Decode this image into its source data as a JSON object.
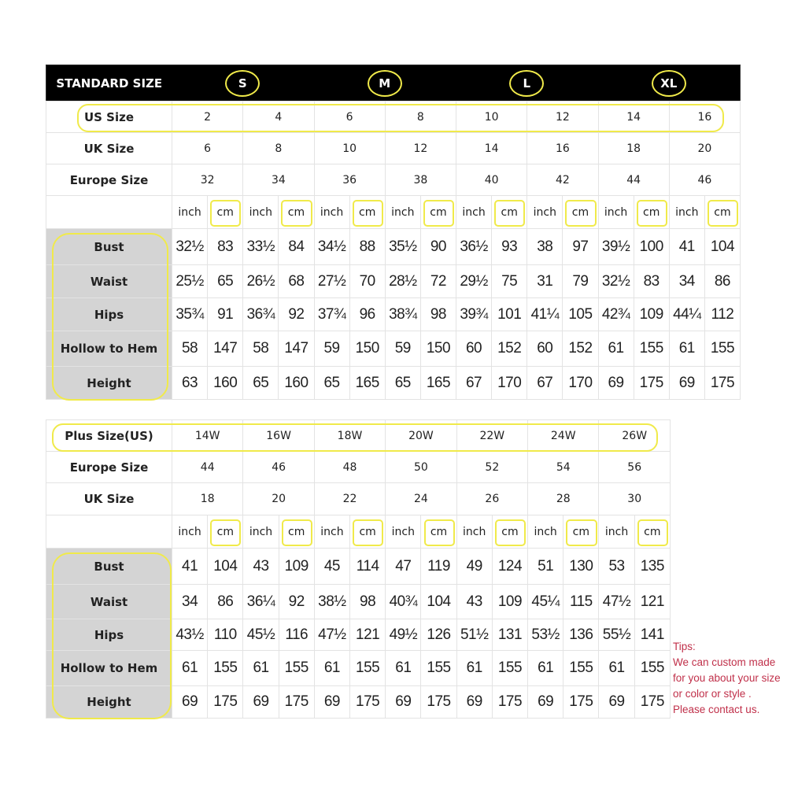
{
  "standard": {
    "title": "STANDARD SIZE",
    "groups": [
      "S",
      "M",
      "L",
      "XL"
    ],
    "size_rows": [
      {
        "label": "US Size",
        "values": [
          "2",
          "4",
          "6",
          "8",
          "10",
          "12",
          "14",
          "16"
        ]
      },
      {
        "label": "UK Size",
        "values": [
          "6",
          "8",
          "10",
          "12",
          "14",
          "16",
          "18",
          "20"
        ]
      },
      {
        "label": "Europe Size",
        "values": [
          "32",
          "34",
          "36",
          "38",
          "40",
          "42",
          "44",
          "46"
        ]
      }
    ],
    "units": [
      "inch",
      "cm"
    ],
    "measure_rows": [
      {
        "label": "Bust",
        "values": [
          "32½",
          "83",
          "33½",
          "84",
          "34½",
          "88",
          "35½",
          "90",
          "36½",
          "93",
          "38",
          "97",
          "39½",
          "100",
          "41",
          "104"
        ]
      },
      {
        "label": "Waist",
        "values": [
          "25½",
          "65",
          "26½",
          "68",
          "27½",
          "70",
          "28½",
          "72",
          "29½",
          "75",
          "31",
          "79",
          "32½",
          "83",
          "34",
          "86"
        ]
      },
      {
        "label": "Hips",
        "values": [
          "35¾",
          "91",
          "36¾",
          "92",
          "37¾",
          "96",
          "38¾",
          "98",
          "39¾",
          "101",
          "41¼",
          "105",
          "42¾",
          "109",
          "44¼",
          "112"
        ]
      },
      {
        "label": "Hollow to Hem",
        "values": [
          "58",
          "147",
          "58",
          "147",
          "59",
          "150",
          "59",
          "150",
          "60",
          "152",
          "60",
          "152",
          "61",
          "155",
          "61",
          "155"
        ]
      },
      {
        "label": "Height",
        "values": [
          "63",
          "160",
          "65",
          "160",
          "65",
          "165",
          "65",
          "165",
          "67",
          "170",
          "67",
          "170",
          "69",
          "175",
          "69",
          "175"
        ]
      }
    ]
  },
  "plus": {
    "size_rows": [
      {
        "label": "Plus Size(US)",
        "values": [
          "14W",
          "16W",
          "18W",
          "20W",
          "22W",
          "24W",
          "26W"
        ]
      },
      {
        "label": "Europe Size",
        "values": [
          "44",
          "46",
          "48",
          "50",
          "52",
          "54",
          "56"
        ]
      },
      {
        "label": "UK Size",
        "values": [
          "18",
          "20",
          "22",
          "24",
          "26",
          "28",
          "30"
        ]
      }
    ],
    "units": [
      "inch",
      "cm"
    ],
    "measure_rows": [
      {
        "label": "Bust",
        "values": [
          "41",
          "104",
          "43",
          "109",
          "45",
          "114",
          "47",
          "119",
          "49",
          "124",
          "51",
          "130",
          "53",
          "135"
        ]
      },
      {
        "label": "Waist",
        "values": [
          "34",
          "86",
          "36¼",
          "92",
          "38½",
          "98",
          "40¾",
          "104",
          "43",
          "109",
          "45¼",
          "115",
          "47½",
          "121"
        ]
      },
      {
        "label": "Hips",
        "values": [
          "43½",
          "110",
          "45½",
          "116",
          "47½",
          "121",
          "49½",
          "126",
          "51½",
          "131",
          "53½",
          "136",
          "55½",
          "141"
        ]
      },
      {
        "label": "Hollow to Hem",
        "values": [
          "61",
          "155",
          "61",
          "155",
          "61",
          "155",
          "61",
          "155",
          "61",
          "155",
          "61",
          "155",
          "61",
          "155"
        ]
      },
      {
        "label": "Height",
        "values": [
          "69",
          "175",
          "69",
          "175",
          "69",
          "175",
          "69",
          "175",
          "69",
          "175",
          "69",
          "175",
          "69",
          "175"
        ]
      }
    ]
  },
  "tips": {
    "title": "Tips:",
    "lines": [
      "We can custom made",
      "for you about your size",
      "or color or style .",
      "Please contact us."
    ]
  },
  "colors": {
    "highlight": "#f0ea4a",
    "header_bg": "#000000",
    "label_bg": "#d4d4d4",
    "tips": "#c0304a"
  }
}
